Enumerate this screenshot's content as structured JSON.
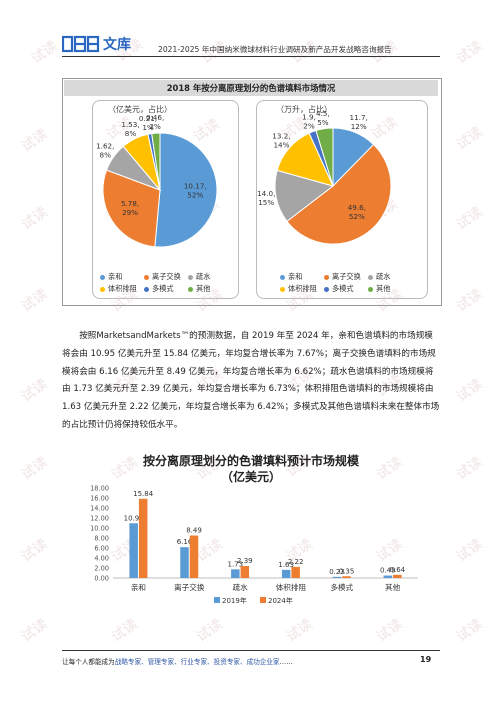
{
  "header": {
    "logo_text": "文库",
    "doc_title": "2021-2025 年中国纳米微球材料行业调研及新产品开发战略咨询报告"
  },
  "figure1": {
    "title": "2018 年按分离原理划分的色谱填料市场情况",
    "left": {
      "unit": "（亿美元，占比）",
      "slices": [
        {
          "value": 10.17,
          "pct": 52,
          "label": "10.17,\n52%",
          "color": "#5b9bd5"
        },
        {
          "value": 5.78,
          "pct": 29,
          "label": "5.78,\n29%",
          "color": "#ed7d31"
        },
        {
          "value": 1.62,
          "pct": 8,
          "label": "1.62,\n8%",
          "color": "#a5a5a5"
        },
        {
          "value": 1.53,
          "pct": 8,
          "label": "1.53,\n8%",
          "color": "#ffc000"
        },
        {
          "value": 0.21,
          "pct": 1,
          "label": "0.21,\n1%",
          "color": "#4472c4"
        },
        {
          "value": 0.46,
          "pct": 2,
          "label": "0.46,\n2%",
          "color": "#70ad47"
        }
      ]
    },
    "right": {
      "unit": "（万升，占比）",
      "slices": [
        {
          "value": 11.7,
          "pct": 12,
          "label": "11.7,\n12%",
          "color": "#5b9bd5"
        },
        {
          "value": 49.6,
          "pct": 52,
          "label": "49.6,\n52%",
          "color": "#ed7d31"
        },
        {
          "value": 14.0,
          "pct": 15,
          "label": "14.0,\n15%",
          "color": "#a5a5a5"
        },
        {
          "value": 13.2,
          "pct": 14,
          "label": "13.2,\n14%",
          "color": "#ffc000"
        },
        {
          "value": 1.9,
          "pct": 2,
          "label": "1.9,\n2%",
          "color": "#4472c4"
        },
        {
          "value": 4.5,
          "pct": 5,
          "label": "4.5,\n5%",
          "color": "#70ad47"
        }
      ]
    },
    "legend": [
      "亲和",
      "离子交换",
      "疏水",
      "体积排阻",
      "多模式",
      "其他"
    ]
  },
  "paragraph": "按照MarketsandMarkets™的预测数据，自 2019 年至 2024 年，亲和色谱填料的市场规模将会由 10.95 亿美元升至 15.84 亿美元，年均复合增长率为 7.67%；离子交换色谱填料的市场规模将会由 6.16 亿美元升至 8.49 亿美元，年均复合增长率为 6.62%；疏水色谱填料的市场规模将由 1.73 亿美元升至 2.39 亿美元，年均复合增长率为 6.73%；体积排阻色谱填料的市场规模将由 1.63 亿美元升至 2.22 亿美元，年均复合增长率为 6.42%；多模式及其他色谱填料未来在整体市场的占比预计仍将保持较低水平。",
  "chart_data": {
    "type": "bar",
    "title": "按分离原理划分的色谱填料预计市场规模",
    "subtitle": "（亿美元）",
    "categories": [
      "亲和",
      "离子交换",
      "疏水",
      "体积排阻",
      "多模式",
      "其他"
    ],
    "series": [
      {
        "name": "2019年",
        "values": [
          10.95,
          6.16,
          1.73,
          1.63,
          0.23,
          0.49
        ],
        "color": "#5b9bd5"
      },
      {
        "name": "2024年",
        "values": [
          15.84,
          8.49,
          2.39,
          2.22,
          0.35,
          0.64
        ],
        "color": "#ed7d31"
      }
    ],
    "ylim": [
      0,
      18
    ],
    "yticks": [
      "0.00",
      "2.00",
      "4.00",
      "6.00",
      "8.00",
      "10.00",
      "12.00",
      "14.00",
      "16.00",
      "18.00"
    ],
    "grid": false,
    "legend": "bottom"
  },
  "footer": {
    "prefix": "让每个人都能成为",
    "highlight": "战略专家、管理专家、行业专家、投资专家、成功企业家",
    "suffix": "……",
    "page_number": "19"
  },
  "watermark": "试读"
}
